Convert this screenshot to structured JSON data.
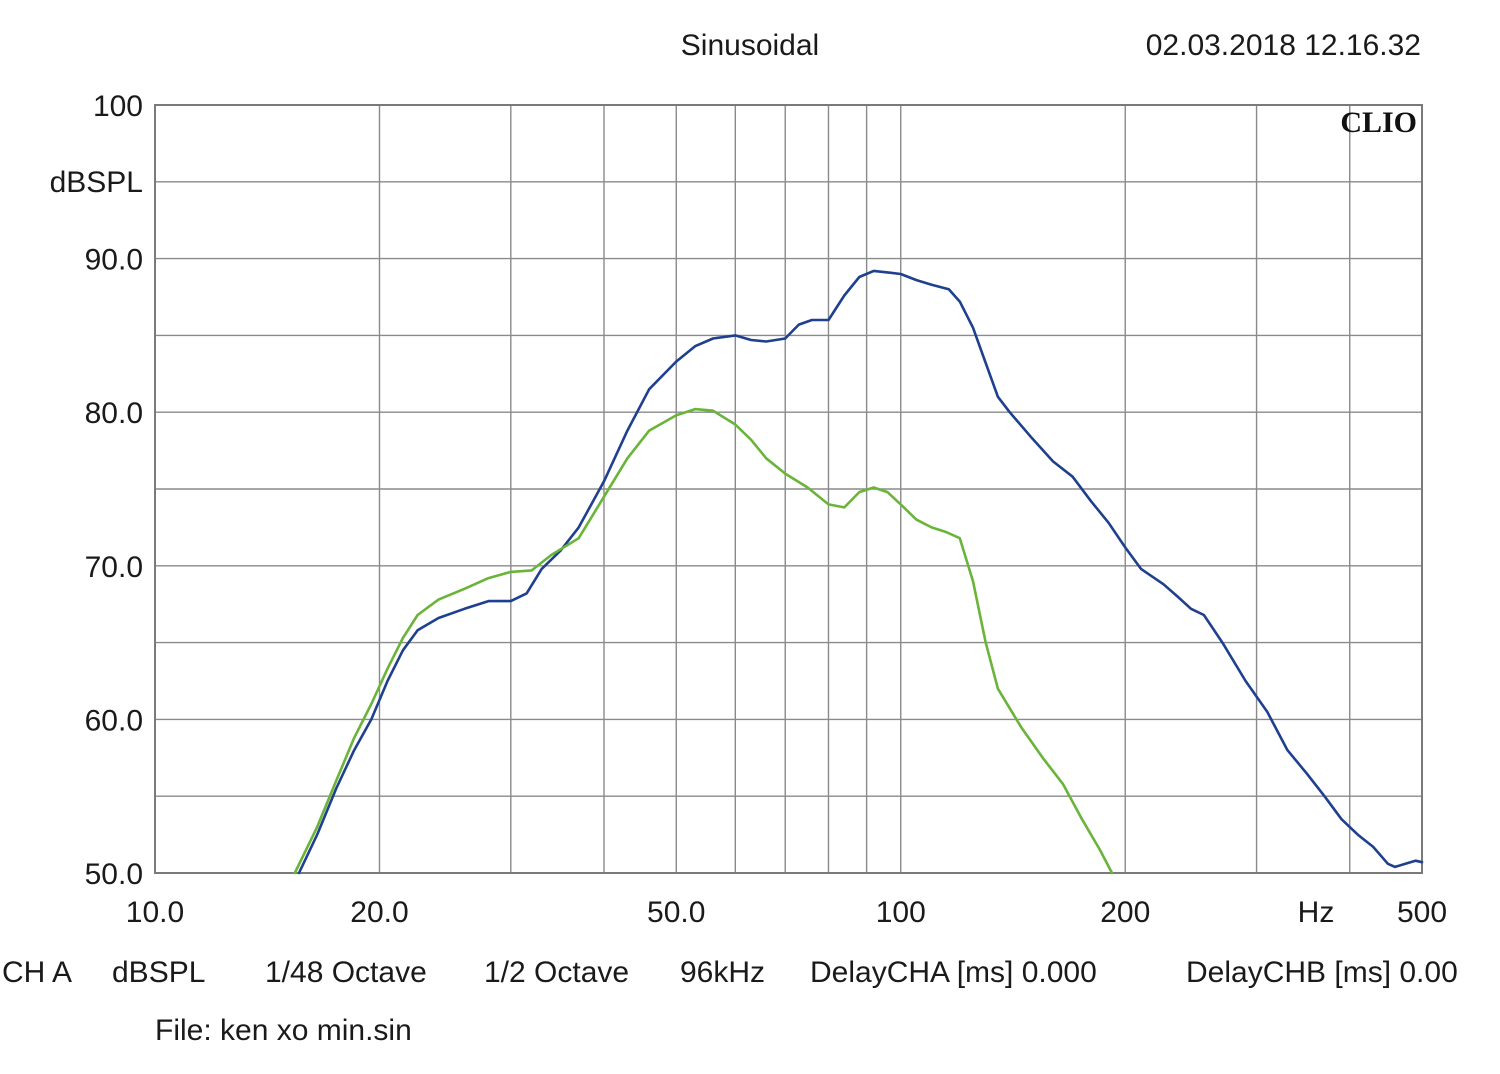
{
  "header": {
    "mode": "Sinusoidal",
    "datetime": "02.03.2018 12.16.32",
    "brand": "CLIO"
  },
  "footer": {
    "info_items": [
      "CH A",
      "dBSPL",
      "1/48 Octave",
      "1/2 Octave",
      "96kHz",
      "DelayCHA [ms] 0.000",
      "DelayCHB [ms] 0.00"
    ],
    "file_label": "File: ken xo min.sin"
  },
  "chart_data": {
    "type": "line",
    "title": "Sinusoidal",
    "xscale": "log",
    "xlim": [
      10,
      500
    ],
    "ylim": [
      50,
      100
    ],
    "ylabel": "dBSPL",
    "xlabel": "Hz",
    "x_tick_labels": [
      {
        "value": 10,
        "label": "10.0"
      },
      {
        "value": 20,
        "label": "20.0"
      },
      {
        "value": 50,
        "label": "50.0"
      },
      {
        "value": 100,
        "label": "100"
      },
      {
        "value": 200,
        "label": "200"
      },
      {
        "value": 500,
        "label": "500"
      }
    ],
    "x_unit_label": "Hz",
    "y_tick_labels": [
      {
        "value": 100,
        "label": "100"
      },
      {
        "value": 90,
        "label": "90.0"
      },
      {
        "value": 80,
        "label": "80.0"
      },
      {
        "value": 70,
        "label": "70.0"
      },
      {
        "value": 60,
        "label": "60.0"
      },
      {
        "value": 50,
        "label": "50.0"
      }
    ],
    "y_unit_label": "dBSPL",
    "grid": true,
    "grid_x": [
      20,
      30,
      40,
      50,
      60,
      70,
      80,
      90,
      100,
      200,
      300,
      400
    ],
    "grid_y": [
      55,
      60,
      65,
      70,
      75,
      80,
      85,
      90,
      95
    ],
    "series": [
      {
        "color": "#1f3f8f",
        "points": [
          [
            15.6,
            50
          ],
          [
            16.5,
            52.5
          ],
          [
            17.5,
            55.5
          ],
          [
            18.5,
            58
          ],
          [
            19.5,
            60
          ],
          [
            20.5,
            62.5
          ],
          [
            21.5,
            64.5
          ],
          [
            22.5,
            65.8
          ],
          [
            24,
            66.6
          ],
          [
            26,
            67.2
          ],
          [
            28,
            67.7
          ],
          [
            30,
            67.7
          ],
          [
            31.5,
            68.2
          ],
          [
            33,
            69.8
          ],
          [
            35,
            71
          ],
          [
            37,
            72.5
          ],
          [
            40,
            75.5
          ],
          [
            43,
            78.8
          ],
          [
            46,
            81.5
          ],
          [
            50,
            83.3
          ],
          [
            53,
            84.3
          ],
          [
            56,
            84.8
          ],
          [
            60,
            85
          ],
          [
            63,
            84.7
          ],
          [
            66,
            84.6
          ],
          [
            70,
            84.8
          ],
          [
            73,
            85.7
          ],
          [
            76,
            86
          ],
          [
            80,
            86
          ],
          [
            84,
            87.6
          ],
          [
            88,
            88.8
          ],
          [
            92,
            89.2
          ],
          [
            96,
            89.1
          ],
          [
            100,
            89
          ],
          [
            105,
            88.6
          ],
          [
            110,
            88.3
          ],
          [
            116,
            88
          ],
          [
            120,
            87.2
          ],
          [
            125,
            85.5
          ],
          [
            130,
            83.2
          ],
          [
            135,
            81
          ],
          [
            140,
            80
          ],
          [
            150,
            78.3
          ],
          [
            160,
            76.8
          ],
          [
            170,
            75.8
          ],
          [
            180,
            74.2
          ],
          [
            190,
            72.8
          ],
          [
            200,
            71.2
          ],
          [
            210,
            69.8
          ],
          [
            225,
            68.8
          ],
          [
            235,
            68
          ],
          [
            245,
            67.2
          ],
          [
            255,
            66.8
          ],
          [
            270,
            65
          ],
          [
            290,
            62.5
          ],
          [
            310,
            60.5
          ],
          [
            330,
            58
          ],
          [
            350,
            56.5
          ],
          [
            370,
            55
          ],
          [
            390,
            53.5
          ],
          [
            410,
            52.5
          ],
          [
            430,
            51.7
          ],
          [
            450,
            50.6
          ],
          [
            460,
            50.4
          ],
          [
            475,
            50.6
          ],
          [
            490,
            50.8
          ],
          [
            500,
            50.7
          ]
        ]
      },
      {
        "color": "#6ab43a",
        "points": [
          [
            15.4,
            50
          ],
          [
            16.5,
            53
          ],
          [
            17.5,
            56
          ],
          [
            18.5,
            58.8
          ],
          [
            19.5,
            61
          ],
          [
            20.5,
            63.3
          ],
          [
            21.5,
            65.3
          ],
          [
            22.5,
            66.8
          ],
          [
            24,
            67.8
          ],
          [
            26,
            68.5
          ],
          [
            28,
            69.2
          ],
          [
            30,
            69.6
          ],
          [
            32,
            69.7
          ],
          [
            34,
            70.7
          ],
          [
            37,
            71.8
          ],
          [
            40,
            74.5
          ],
          [
            43,
            77
          ],
          [
            46,
            78.8
          ],
          [
            50,
            79.8
          ],
          [
            53,
            80.2
          ],
          [
            56,
            80.1
          ],
          [
            60,
            79.2
          ],
          [
            63,
            78.2
          ],
          [
            66,
            77
          ],
          [
            70,
            76
          ],
          [
            75,
            75.1
          ],
          [
            80,
            74
          ],
          [
            84,
            73.8
          ],
          [
            88,
            74.8
          ],
          [
            92,
            75.1
          ],
          [
            96,
            74.8
          ],
          [
            100,
            74
          ],
          [
            105,
            73
          ],
          [
            110,
            72.5
          ],
          [
            115,
            72.2
          ],
          [
            120,
            71.8
          ],
          [
            125,
            69
          ],
          [
            130,
            65
          ],
          [
            135,
            62
          ],
          [
            145,
            59.5
          ],
          [
            155,
            57.5
          ],
          [
            165,
            55.8
          ],
          [
            175,
            53.5
          ],
          [
            185,
            51.5
          ],
          [
            192,
            50
          ]
        ]
      }
    ]
  }
}
